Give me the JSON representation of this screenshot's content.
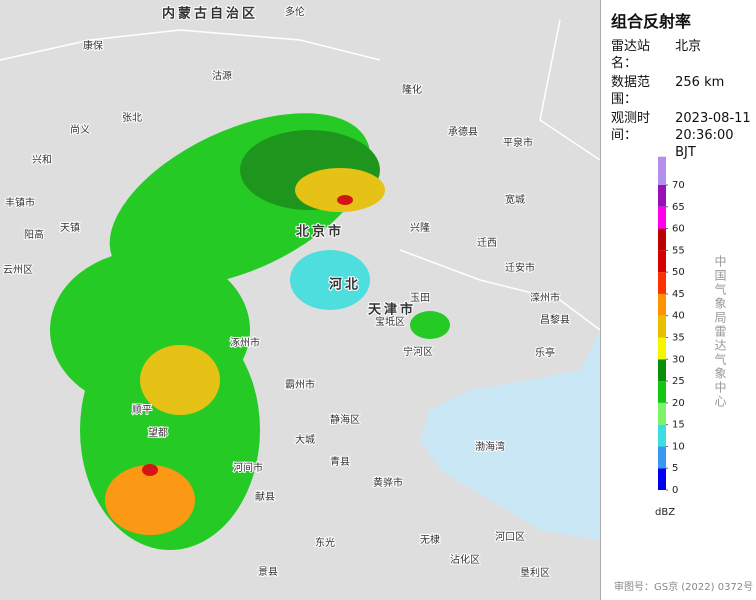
{
  "panel": {
    "title": "组合反射率",
    "rows": [
      {
        "label": "雷达站名：",
        "value": "北京"
      },
      {
        "label": "数据范围：",
        "value": "256 km"
      },
      {
        "label": "观测时间：",
        "value": "2023-08-11 20:36:00 BJT"
      }
    ],
    "colorbar": {
      "ticks": [
        0,
        5,
        10,
        15,
        20,
        25,
        30,
        35,
        40,
        45,
        50,
        55,
        60,
        65,
        70
      ],
      "colors": [
        "#0000f0",
        "#3a98f0",
        "#3fdede",
        "#7ef26a",
        "#12c812",
        "#0a8f0a",
        "#f6f600",
        "#e6bf00",
        "#ff9200",
        "#ff3000",
        "#d40000",
        "#b80000",
        "#ff00ee",
        "#9a10b8",
        "#b490ec"
      ],
      "unit": "dBZ"
    },
    "credit": "中国气象局雷达气象中心",
    "approval": "审图号：GS京 (2022) 0372号"
  },
  "map": {
    "labels": [
      "内蒙古自治区",
      "多伦",
      "康保",
      "沽源",
      "隆化",
      "张北",
      "尚义",
      "承德县",
      "平泉市",
      "宽城",
      "兴隆",
      "迁西",
      "迁安市",
      "滦州市",
      "昌黎县",
      "乐亭",
      "玉田",
      "宝坻区",
      "宁河区",
      "静海区",
      "青县",
      "黄骅市",
      "河间市",
      "献县",
      "渤海湾",
      "顺平",
      "望都",
      "涿州市",
      "霸州市",
      "大城",
      "东光",
      "景县",
      "无棣",
      "沾化区",
      "河口区",
      "垦利区",
      "丰镇市",
      "兴和",
      "阳高",
      "天镇",
      "云州区",
      "北京市",
      "天津市",
      "河北"
    ]
  }
}
